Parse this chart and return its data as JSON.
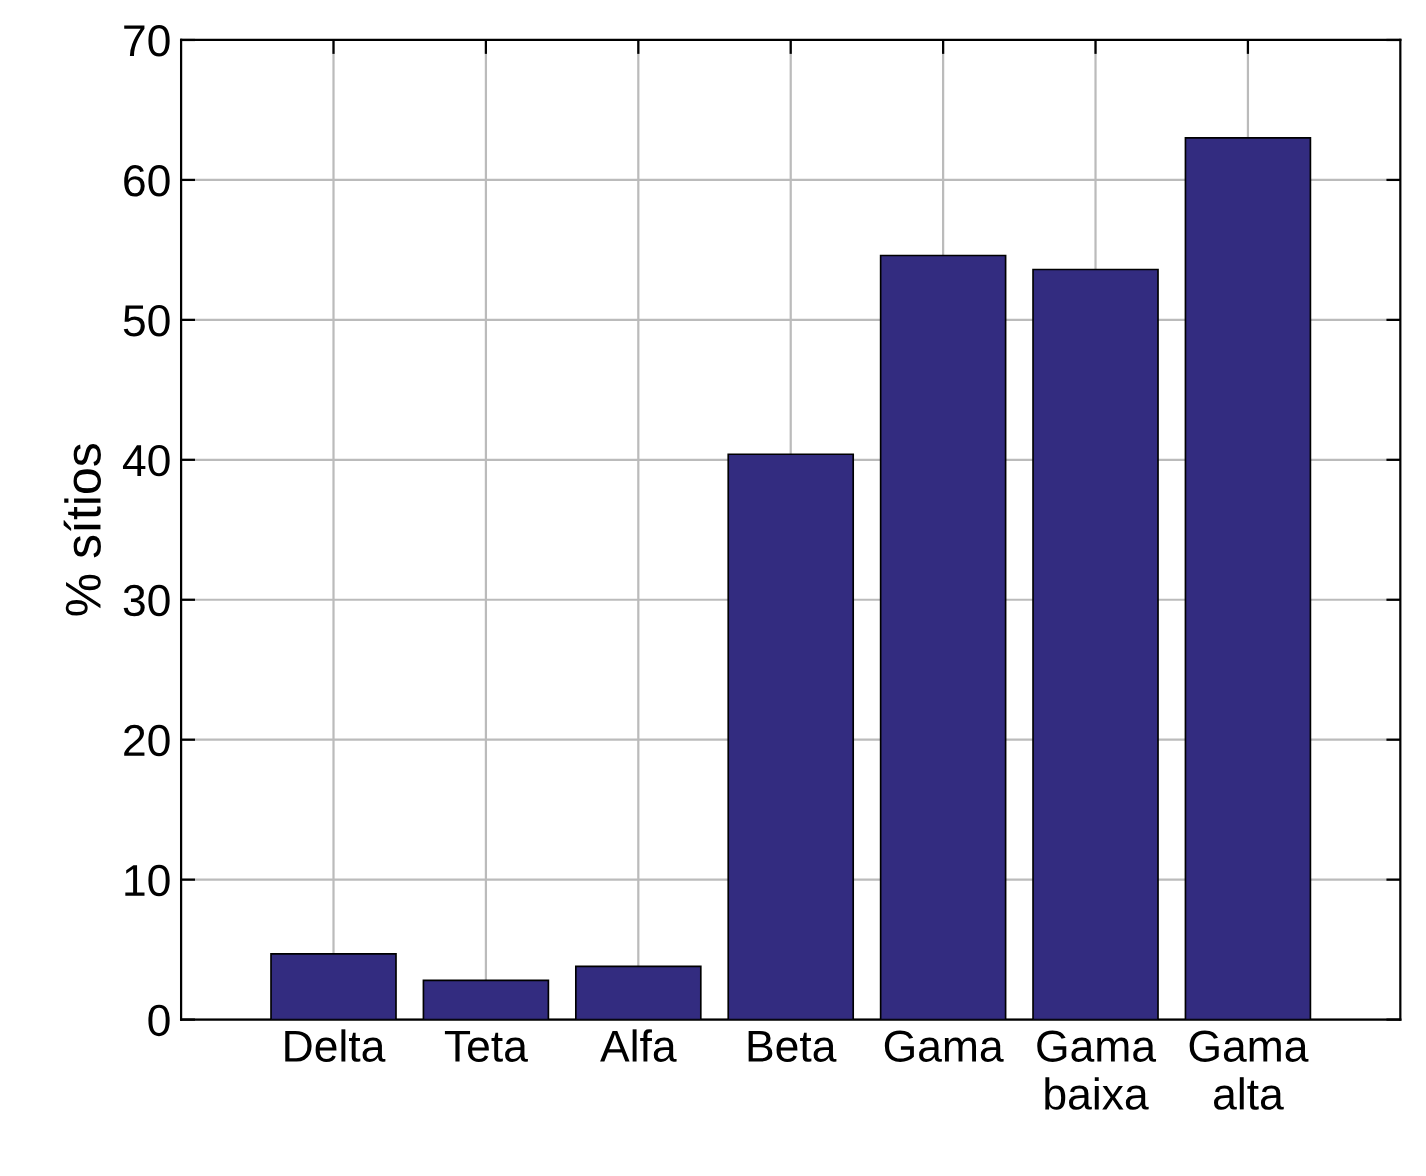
{
  "chart_data": {
    "type": "bar",
    "ylabel": "% sítios",
    "categories": [
      "Delta",
      "Teta",
      "Alfa",
      "Beta",
      "Gama",
      "Gama\nbaixa",
      "Gama\nalta"
    ],
    "values": [
      4.7,
      2.8,
      3.8,
      40.4,
      54.6,
      53.6,
      63.0
    ],
    "color": "#332c80",
    "ylim": [
      0,
      70
    ],
    "yticks": [
      0,
      10,
      20,
      30,
      40,
      50,
      60,
      70
    ],
    "grid": true
  }
}
